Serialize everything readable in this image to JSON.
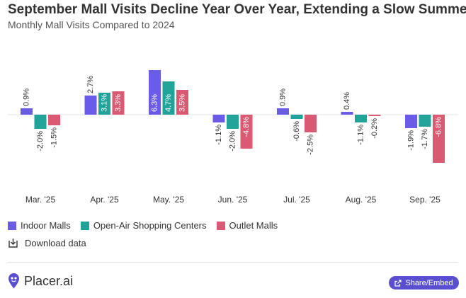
{
  "title": "September Mall Visits Decline Year Over Year, Extending a Slow Summer",
  "subtitle": "Monthly Mall Visits Compared to 2024",
  "colors": {
    "indoor": "#6b5ce7",
    "open_air": "#22a39a",
    "outlet": "#d95a72"
  },
  "chart_data": {
    "type": "bar",
    "categories": [
      "Mar. '25",
      "Apr. '25",
      "May. '25",
      "Jun. '25",
      "Jul. '25",
      "Aug. '25",
      "Sep. '25"
    ],
    "series": [
      {
        "name": "Indoor Malls",
        "values": [
          0.9,
          2.7,
          6.3,
          -1.1,
          0.9,
          0.4,
          -1.9
        ],
        "labels": [
          "0.9%",
          "2.7%",
          "6.3%",
          "-1.1%",
          "0.9%",
          "0.4%",
          "-1.9%"
        ]
      },
      {
        "name": "Open-Air Shopping Centers",
        "values": [
          -2.0,
          3.1,
          4.7,
          -2.0,
          -0.6,
          -1.1,
          -1.7
        ],
        "labels": [
          "-2.0%",
          "3.1%",
          "4.7%",
          "-2.0%",
          "-0.6%",
          "-1.1%",
          "-1.7%"
        ]
      },
      {
        "name": "Outlet Malls",
        "values": [
          -1.5,
          3.3,
          3.5,
          -4.8,
          -2.5,
          -0.2,
          -6.8
        ],
        "labels": [
          "-1.5%",
          "3.3%",
          "3.5%",
          "-4.8%",
          "-2.5%",
          "-0.2%",
          "-6.8%"
        ]
      }
    ],
    "ylim": [
      -7,
      7
    ],
    "grid": false,
    "legend_position": "bottom-left"
  },
  "legend": {
    "indoor": "Indoor Malls",
    "open_air": "Open-Air Shopping Centers",
    "outlet": "Outlet Malls"
  },
  "download_label": "Download data",
  "brand": "Placer.ai",
  "share_label": "Share/Embed"
}
